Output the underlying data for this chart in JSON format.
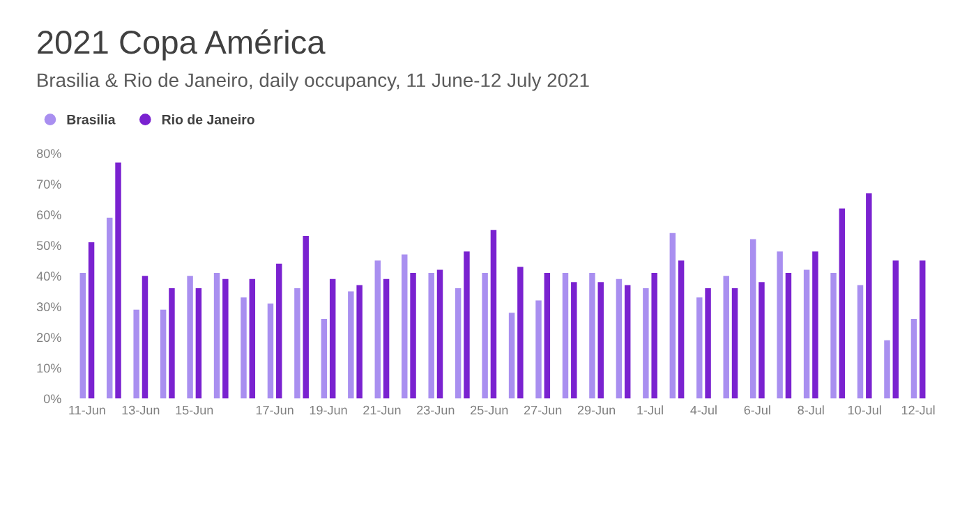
{
  "chart_data": {
    "type": "bar",
    "title": "2021 Copa América",
    "subtitle": "Brasilia & Rio de Janeiro, daily occupancy, 11 June-12 July 2021",
    "categories": [
      "11-Jun",
      null,
      "13-Jun",
      null,
      "15-Jun",
      null,
      null,
      "17-Jun",
      null,
      "19-Jun",
      null,
      "21-Jun",
      null,
      "23-Jun",
      null,
      "25-Jun",
      null,
      "27-Jun",
      null,
      "29-Jun",
      null,
      "1-Jul",
      null,
      "4-Jul",
      null,
      "6-Jul",
      null,
      "8-Jul",
      null,
      "10-Jul",
      null,
      "12-Jul"
    ],
    "series": [
      {
        "name": "Brasilia",
        "color": "#a98ff0",
        "values": [
          41,
          59,
          29,
          29,
          40,
          41,
          33,
          31,
          36,
          26,
          35,
          45,
          47,
          41,
          36,
          41,
          28,
          32,
          41,
          41,
          39,
          36,
          54,
          33,
          40,
          52,
          48,
          42,
          41,
          37,
          19,
          26
        ]
      },
      {
        "name": "Rio de Janeiro",
        "color": "#7a22d0",
        "values": [
          51,
          77,
          40,
          36,
          36,
          39,
          39,
          44,
          53,
          39,
          37,
          39,
          41,
          42,
          48,
          55,
          43,
          41,
          38,
          38,
          37,
          41,
          45,
          36,
          36,
          38,
          41,
          48,
          62,
          67,
          45,
          45
        ]
      }
    ],
    "ylim": [
      0,
      80
    ],
    "yticks": [
      {
        "value": 0,
        "label": "0%"
      },
      {
        "value": 10,
        "label": "10%"
      },
      {
        "value": 20,
        "label": "20%"
      },
      {
        "value": 30,
        "label": "30%"
      },
      {
        "value": 40,
        "label": "40%"
      },
      {
        "value": 50,
        "label": "50%"
      },
      {
        "value": 60,
        "label": "60%"
      },
      {
        "value": 70,
        "label": "70%"
      },
      {
        "value": 80,
        "label": "80%"
      }
    ],
    "grid": false,
    "legend": "top left"
  }
}
